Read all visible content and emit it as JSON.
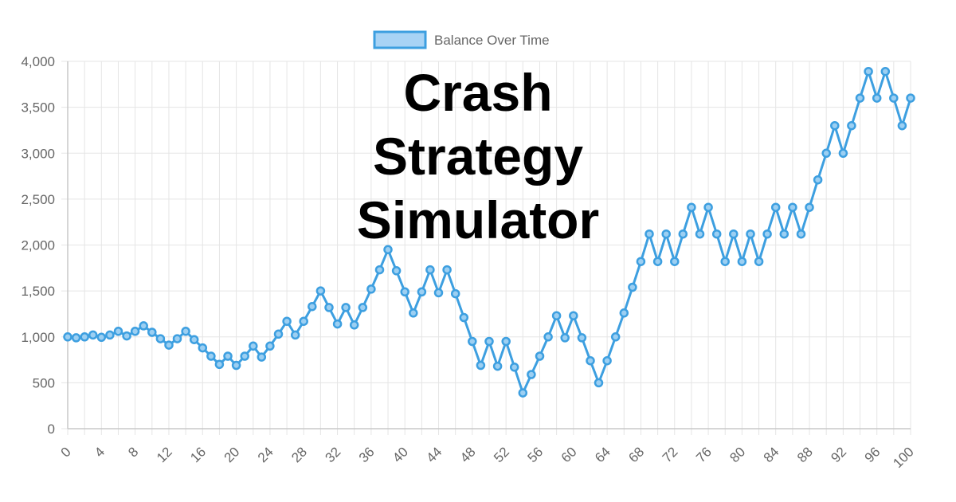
{
  "overlay": {
    "title_lines": [
      "Crash",
      "Strategy",
      "Simulator"
    ]
  },
  "colors": {
    "line": "#3d9fe0",
    "point_fill": "#9ccff2",
    "legend_fill": "#a8d3f5",
    "grid": "#e5e5e5",
    "axis": "#c8c8c8",
    "tick_text": "#666666"
  },
  "chart_data": {
    "type": "line",
    "legend": {
      "position": "top",
      "label": "Balance Over Time"
    },
    "grid": true,
    "xlim": [
      0,
      100
    ],
    "ylim": [
      0,
      4000
    ],
    "x_ticks": [
      "0",
      "4",
      "8",
      "12",
      "16",
      "20",
      "24",
      "28",
      "32",
      "36",
      "40",
      "44",
      "48",
      "52",
      "56",
      "60",
      "64",
      "68",
      "72",
      "76",
      "80",
      "84",
      "88",
      "92",
      "96",
      "100"
    ],
    "y_ticks": [
      "0",
      "500",
      "1,000",
      "1,500",
      "2,000",
      "2,500",
      "3,000",
      "3,500",
      "4,000"
    ],
    "series": [
      {
        "name": "Balance Over Time",
        "x": [
          0,
          1,
          2,
          3,
          4,
          5,
          6,
          7,
          8,
          9,
          10,
          11,
          12,
          13,
          14,
          15,
          16,
          17,
          18,
          19,
          20,
          21,
          22,
          23,
          24,
          25,
          26,
          27,
          28,
          29,
          30,
          31,
          32,
          33,
          34,
          35,
          36,
          37,
          38,
          39,
          40,
          41,
          42,
          43,
          44,
          45,
          46,
          47,
          48,
          49,
          50,
          51,
          52,
          53,
          54,
          55,
          56,
          57,
          58,
          59,
          60,
          61,
          62,
          63,
          64,
          65,
          66,
          67,
          68,
          69,
          70,
          71,
          72,
          73,
          74,
          75,
          76,
          77,
          78,
          79,
          80,
          81,
          82,
          83,
          84,
          85,
          86,
          87,
          88,
          89,
          90,
          91,
          92,
          93,
          94,
          95,
          96,
          97,
          98,
          99,
          100
        ],
        "values": [
          1000,
          990,
          1000,
          1020,
          995,
          1020,
          1060,
          1010,
          1060,
          1120,
          1050,
          980,
          910,
          980,
          1060,
          970,
          880,
          790,
          700,
          790,
          690,
          790,
          900,
          780,
          900,
          1030,
          1170,
          1020,
          1170,
          1330,
          1500,
          1320,
          1140,
          1320,
          1130,
          1320,
          1520,
          1730,
          1950,
          1720,
          1490,
          1260,
          1490,
          1730,
          1480,
          1730,
          1470,
          1210,
          950,
          690,
          950,
          680,
          950,
          670,
          390,
          590,
          790,
          1000,
          1230,
          990,
          1230,
          990,
          740,
          500,
          740,
          1000,
          1260,
          1540,
          1820,
          2120,
          1820,
          2120,
          1820,
          2120,
          2410,
          2120,
          2410,
          2120,
          1820,
          2120,
          1820,
          2120,
          1820,
          2120,
          2410,
          2120,
          2410,
          2120,
          2410,
          2710,
          3000,
          3300,
          3000,
          3300,
          3600,
          3890,
          3600,
          3890,
          3600,
          3300,
          3600
        ]
      }
    ]
  }
}
